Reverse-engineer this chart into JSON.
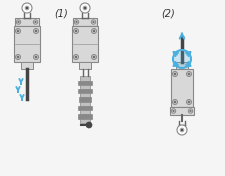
{
  "background_color": "#f5f5f5",
  "fig_width": 2.25,
  "fig_height": 1.76,
  "dpi": 100,
  "label1": "(1)",
  "label2": "(2)",
  "body_color": "#d8d8d8",
  "body_color2": "#c8c8c8",
  "body_edge": "#888888",
  "body_edge_dark": "#666666",
  "blue_color": "#4ab0e0",
  "dark_color": "#444444",
  "mid_color": "#aaaaaa",
  "screw_color": "#999999",
  "thread_light": "#c0c0c0",
  "thread_dark": "#888888"
}
